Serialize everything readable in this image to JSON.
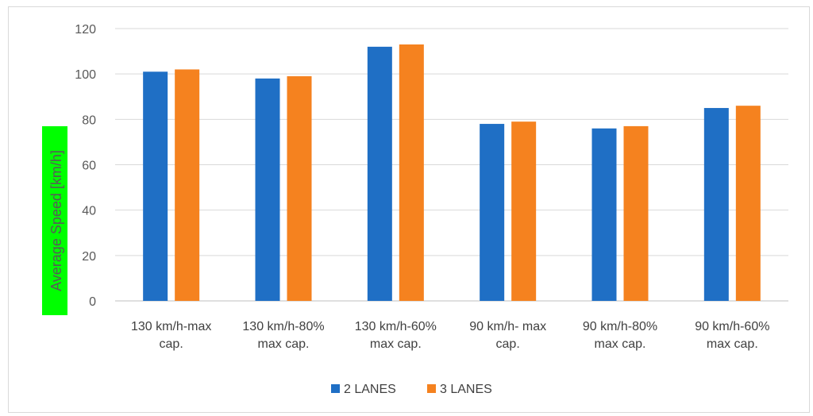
{
  "chart_data": {
    "type": "bar",
    "title": "",
    "xlabel": "",
    "ylabel": "Average Speed [km/h]",
    "ylabel_highlight": "#00ff00",
    "ylim": [
      0,
      120
    ],
    "yticks": [
      0,
      20,
      40,
      60,
      80,
      100,
      120
    ],
    "grid": true,
    "legend_position": "bottom",
    "categories": [
      [
        "130 km/h-max",
        "cap."
      ],
      [
        "130 km/h-80%",
        "max cap."
      ],
      [
        "130 km/h-60%",
        "max cap."
      ],
      [
        "90 km/h- max",
        "cap."
      ],
      [
        "90 km/h-80%",
        "max cap."
      ],
      [
        "90 km/h-60%",
        "max cap."
      ]
    ],
    "series": [
      {
        "name": "2 LANES",
        "color": "#1f6fc5",
        "values": [
          101,
          98,
          112,
          78,
          76,
          85
        ]
      },
      {
        "name": "3 LANES",
        "color": "#f5821f",
        "values": [
          102,
          99,
          113,
          79,
          77,
          86
        ]
      }
    ]
  }
}
